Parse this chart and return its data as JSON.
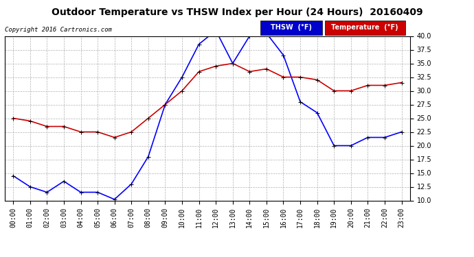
{
  "title": "Outdoor Temperature vs THSW Index per Hour (24 Hours)  20160409",
  "copyright": "Copyright 2016 Cartronics.com",
  "hours": [
    "00:00",
    "01:00",
    "02:00",
    "03:00",
    "04:00",
    "05:00",
    "06:00",
    "07:00",
    "08:00",
    "09:00",
    "10:00",
    "11:00",
    "12:00",
    "13:00",
    "14:00",
    "15:00",
    "16:00",
    "17:00",
    "18:00",
    "19:00",
    "20:00",
    "21:00",
    "22:00",
    "23:00"
  ],
  "thsw": [
    14.5,
    12.5,
    11.5,
    13.5,
    11.5,
    11.5,
    10.2,
    13.0,
    18.0,
    27.5,
    32.5,
    38.5,
    41.0,
    35.0,
    40.0,
    40.5,
    36.5,
    28.0,
    26.0,
    20.0,
    20.0,
    21.5,
    21.5,
    22.5
  ],
  "temp": [
    25.0,
    24.5,
    23.5,
    23.5,
    22.5,
    22.5,
    21.5,
    22.5,
    25.0,
    27.5,
    30.0,
    33.5,
    34.5,
    35.0,
    33.5,
    34.0,
    32.5,
    32.5,
    32.0,
    30.0,
    30.0,
    31.0,
    31.0,
    31.5
  ],
  "thsw_color": "#0000ff",
  "temp_color": "#cc0000",
  "background_color": "#ffffff",
  "grid_color": "#b0b0b0",
  "ylim": [
    10.0,
    40.0
  ],
  "yticks": [
    10.0,
    12.5,
    15.0,
    17.5,
    20.0,
    22.5,
    25.0,
    27.5,
    30.0,
    32.5,
    35.0,
    37.5,
    40.0
  ],
  "legend_thsw_bg": "#0000cc",
  "legend_temp_bg": "#cc0000",
  "legend_text_color": "#ffffff",
  "title_fontsize": 10,
  "copyright_fontsize": 6.5,
  "tick_fontsize": 7,
  "marker": "+",
  "markersize": 5,
  "linewidth": 1.2
}
